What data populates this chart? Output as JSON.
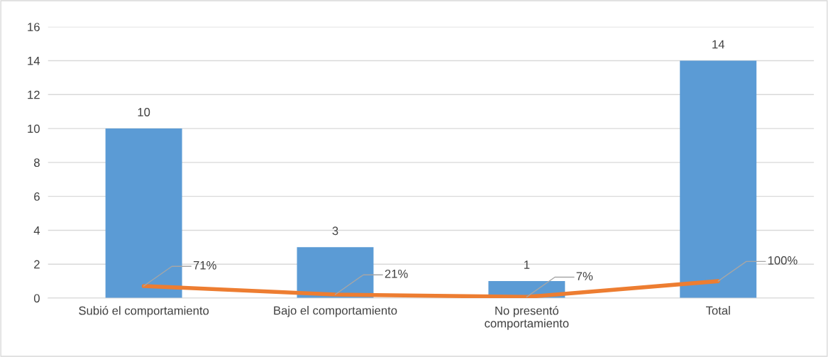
{
  "chart_data": {
    "type": "bar",
    "categories": [
      "Subió el comportamiento",
      "Bajo el comportamiento",
      "No presentó\ncomportamiento",
      "Total"
    ],
    "series": [
      {
        "color": "#5b9bd5",
        "values": [
          10,
          3,
          1,
          14
        ],
        "value_labels": [
          "10",
          "3",
          "1",
          "14"
        ]
      },
      {
        "type": "line",
        "color": "#ed7d31",
        "values": [
          0.71,
          0.21,
          0.07,
          1.0
        ],
        "value_labels": [
          "71%",
          "21%",
          "7%",
          "100%"
        ],
        "marker": "none",
        "line_style": "solid"
      }
    ],
    "ylim": [
      0,
      16
    ],
    "yticks": [
      0,
      2,
      4,
      6,
      8,
      10,
      12,
      14,
      16
    ],
    "grid": "y",
    "legend": false
  }
}
